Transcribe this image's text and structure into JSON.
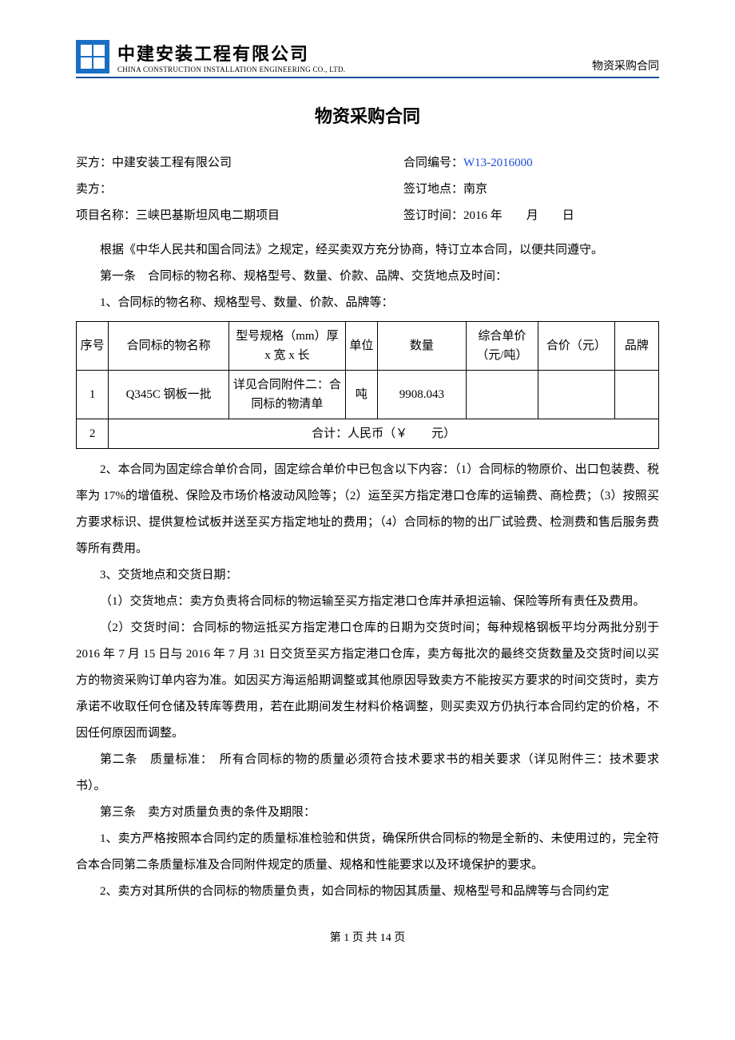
{
  "header": {
    "company_cn": "中建安装工程有限公司",
    "company_en": "CHINA CONSTRUCTION INSTALLATION ENGINEERING CO., LTD.",
    "doc_type": "物资采购合同",
    "logo_color": "#1a6fc4"
  },
  "title": "物资采购合同",
  "meta": {
    "buyer_label": "买方：",
    "buyer_value": "中建安装工程有限公司",
    "contract_no_label": "合同编号：",
    "contract_no_value": "W13-2016000",
    "seller_label": "卖方：",
    "seller_value": "",
    "sign_place_label": "签订地点：",
    "sign_place_value": "南京",
    "project_label": "项目名称：",
    "project_value": "三峡巴基斯坦风电二期项目",
    "sign_time_label": "签订时间：",
    "sign_time_value": "2016 年　　月　　日"
  },
  "intro": "根据《中华人民共和国合同法》之规定，经买卖双方充分协商，特订立本合同，以便共同遵守。",
  "clause1_title": "第一条　合同标的物名称、规格型号、数量、价款、品牌、交货地点及时间：",
  "clause1_1": "1、合同标的物名称、规格型号、数量、价款、品牌等：",
  "table": {
    "headers": {
      "seq": "序号",
      "name": "合同标的物名称",
      "spec": "型号规格（mm）厚 x 宽 x 长",
      "unit": "单位",
      "qty": "数量",
      "unit_price": "综合单价（元/吨）",
      "total": "合价（元）",
      "brand": "品牌"
    },
    "rows": [
      {
        "seq": "1",
        "name": "Q345C 钢板一批",
        "spec": "详见合同附件二：合同标的物清单",
        "unit": "吨",
        "qty": "9908.043",
        "unit_price": "",
        "total": "",
        "brand": ""
      }
    ],
    "total_row_seq": "2",
    "total_row_text": "合计：人民币（￥　　元）"
  },
  "clause1_2": "2、本合同为固定综合单价合同，固定综合单价中已包含以下内容：（1）合同标的物原价、出口包装费、税率为 17%的增值税、保险及市场价格波动风险等；（2）运至买方指定港口仓库的运输费、商检费；（3）按照买方要求标识、提供复检试板并送至买方指定地址的费用；（4）合同标的物的出厂试验费、检测费和售后服务费等所有费用。",
  "clause1_3": "3、交货地点和交货日期：",
  "clause1_3_1": "（1）交货地点：卖方负责将合同标的物运输至买方指定港口仓库并承担运输、保险等所有责任及费用。",
  "clause1_3_2": "（2）交货时间：合同标的物运抵买方指定港口仓库的日期为交货时间；每种规格钢板平均分两批分别于 2016 年 7 月 15 日与 2016 年 7 月 31 日交货至买方指定港口仓库，卖方每批次的最终交货数量及交货时间以买方的物资采购订单内容为准。如因买方海运船期调整或其他原因导致卖方不能按买方要求的时间交货时，卖方承诺不收取任何仓储及转库等费用，若在此期间发生材料价格调整，则买卖双方仍执行本合同约定的价格，不因任何原因而调整。",
  "clause2": "第二条　质量标准：　所有合同标的物的质量必须符合技术要求书的相关要求（详见附件三：技术要求书）。",
  "clause3_title": "第三条　卖方对质量负责的条件及期限：",
  "clause3_1": "1、卖方严格按照本合同约定的质量标准检验和供货，确保所供合同标的物是全新的、未使用过的，完全符合本合同第二条质量标准及合同附件规定的质量、规格和性能要求以及环境保护的要求。",
  "clause3_2": "2、卖方对其所供的合同标的物质量负责，如合同标的物因其质量、规格型号和品牌等与合同约定",
  "footer": "第 1 页 共 14 页"
}
